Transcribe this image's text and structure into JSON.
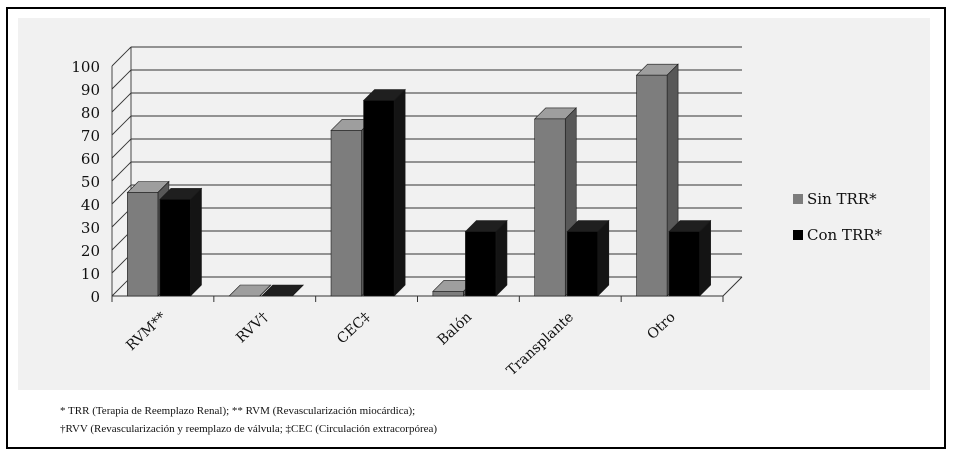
{
  "chart_data": {
    "type": "bar",
    "categories": [
      "RVM**",
      "RVV†",
      "CEC‡",
      "Balón",
      "Transplante",
      "Otro"
    ],
    "series": [
      {
        "name": "Sin TRR*",
        "values": [
          45,
          0,
          72,
          2,
          77,
          96
        ],
        "color": "#7d7d7d"
      },
      {
        "name": "Con TRR*",
        "values": [
          42,
          0,
          85,
          28,
          28,
          28
        ],
        "color": "#000000"
      }
    ],
    "yticks": [
      0,
      10,
      20,
      30,
      40,
      50,
      60,
      70,
      80,
      90,
      100
    ],
    "ylim": [
      0,
      100
    ],
    "grid": true,
    "legend": "right",
    "style": "3d"
  },
  "footnotes": {
    "line1": "* TRR (Terapia de Reemplazo Renal); ** RVM (Revascularización miocárdica);",
    "line2": "†RVV (Revascularización y reemplazo de válvula; ‡CEC (Circulación extracorpórea)"
  }
}
